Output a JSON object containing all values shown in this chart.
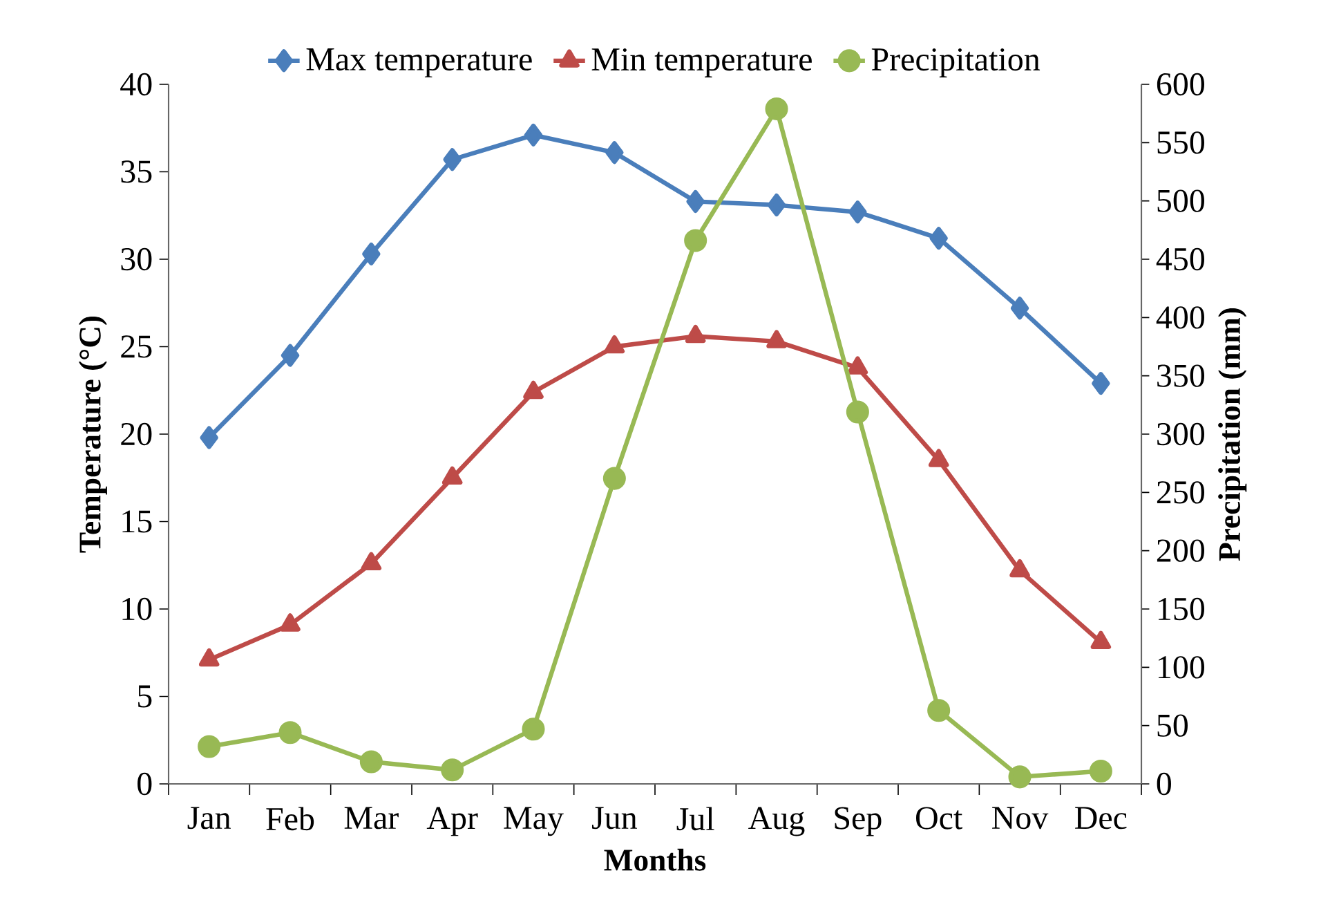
{
  "chart_data": {
    "type": "line",
    "xlabel": "Months",
    "ylabel": "Temperature (°C)",
    "y2label": "Precipitation (mm)",
    "categories": [
      "Jan",
      "Feb",
      "Mar",
      "Apr",
      "May",
      "Jun",
      "Jul",
      "Aug",
      "Sep",
      "Oct",
      "Nov",
      "Dec"
    ],
    "series": [
      {
        "name": "Max temperature",
        "color": "#4a7ebb",
        "marker": "diamond",
        "values": [
          19.8,
          24.5,
          30.3,
          35.7,
          37.1,
          36.1,
          33.3,
          33.1,
          32.7,
          31.2,
          27.2,
          22.9
        ]
      },
      {
        "name": "Min temperature",
        "color": "#be4b48",
        "marker": "triangle",
        "values": [
          7.1,
          9.1,
          12.6,
          17.5,
          22.4,
          25.0,
          25.6,
          25.3,
          23.8,
          18.5,
          12.2,
          8.1
        ]
      },
      {
        "name": "Precipitation",
        "color": "#98b954",
        "marker": "circle",
        "axis": "y2",
        "values": [
          32,
          44,
          19,
          12,
          47,
          262,
          466,
          579,
          319,
          63,
          6,
          11
        ]
      }
    ],
    "ylim": [
      0,
      40
    ],
    "yticks": [
      0,
      5,
      10,
      15,
      20,
      25,
      30,
      35,
      40
    ],
    "y2lim": [
      0,
      600
    ],
    "y2ticks": [
      0,
      50,
      100,
      150,
      200,
      250,
      300,
      350,
      400,
      450,
      500,
      550,
      600
    ],
    "grid": false,
    "legend": "top",
    "line_style": "solid"
  }
}
